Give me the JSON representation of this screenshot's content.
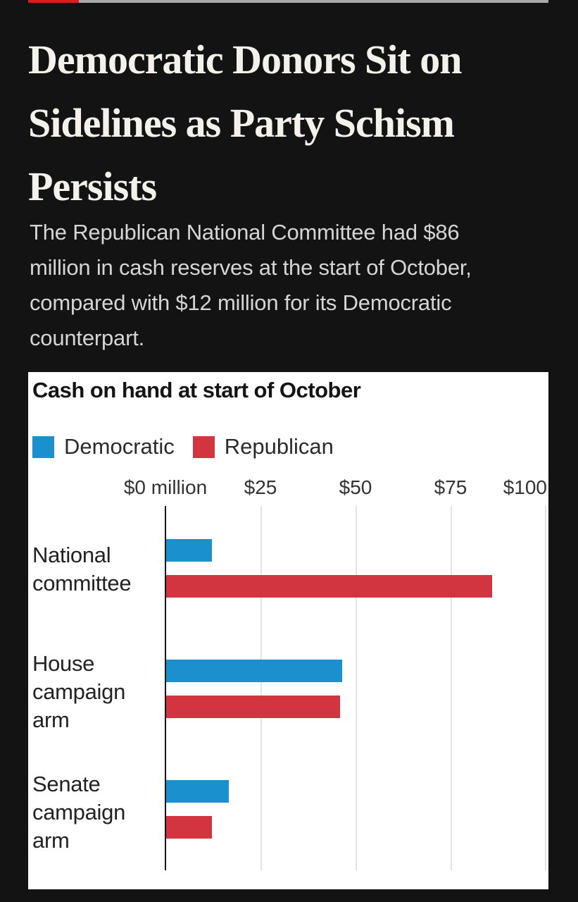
{
  "page": {
    "background_color": "#131313",
    "progress_fill_color": "#de1b20",
    "progress_track_color": "#a9a9a9"
  },
  "header": {
    "title": "Democratic Donors Sit on Sidelines as Party Schism Persists",
    "title_lines": [
      "Democratic Donors Sit on",
      "Sidelines as Party Schism",
      "Persists"
    ],
    "dek": "The Republican National Committee had $86 million in cash reserves at the start of October, compared with $12 million for its Democratic counterpart.",
    "dek_lines": [
      "The Republican National Committee had $86",
      "million in cash reserves at the start of October,",
      "compared with $12 million for its Democratic",
      "counterpart."
    ]
  },
  "chart_data": {
    "type": "bar",
    "orientation": "horizontal",
    "title": "Cash on hand at start of October",
    "unit": "$ million",
    "categories": [
      "National committee",
      "House campaign arm",
      "Senate campaign arm"
    ],
    "category_label_lines": [
      [
        "National",
        "committee"
      ],
      [
        "House",
        "campaign",
        "arm"
      ],
      [
        "Senate",
        "campaign",
        "arm"
      ]
    ],
    "series": [
      {
        "name": "Democratic",
        "color": "#1a90cf",
        "values": [
          12,
          46.5,
          16.5
        ]
      },
      {
        "name": "Republican",
        "color": "#d23440",
        "values": [
          86,
          46,
          12
        ]
      }
    ],
    "x_axis": {
      "min": 0,
      "max": 100,
      "ticks": [
        "$0 million",
        "$25",
        "$50",
        "$75",
        "$100"
      ]
    },
    "grid": true,
    "legend_position": "top-left",
    "chart_background": "#ffffff"
  }
}
